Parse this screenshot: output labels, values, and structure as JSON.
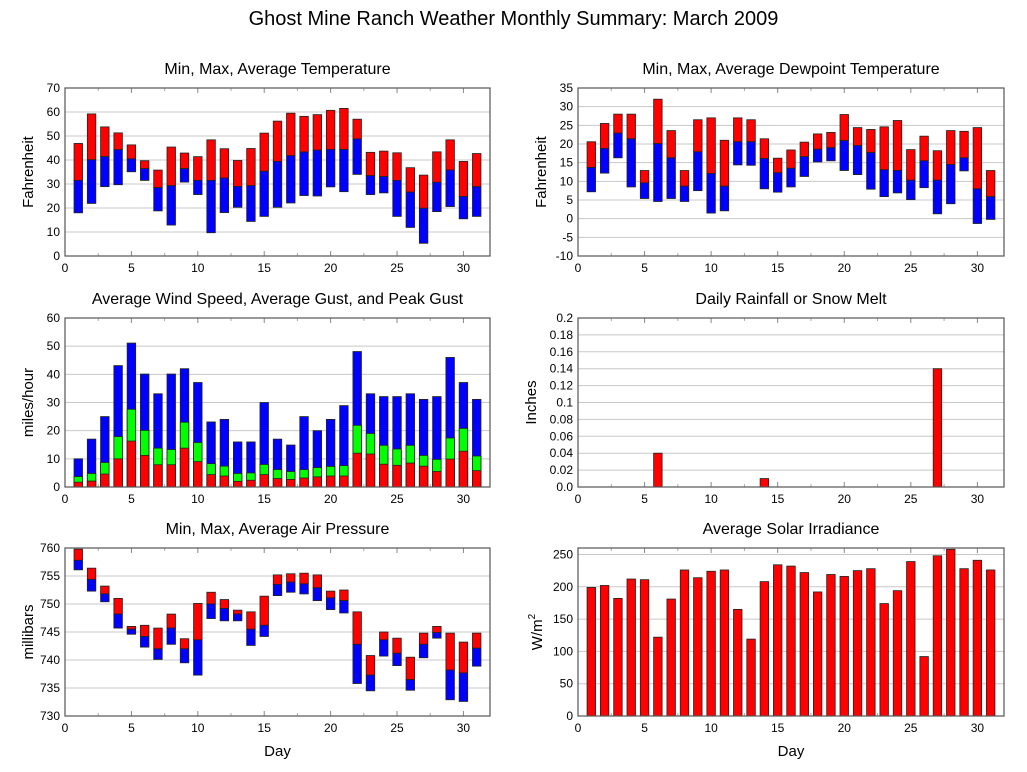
{
  "title": "Ghost Mine Ranch Weather Monthly Summary: March 2009",
  "colors": {
    "red": "#ff0000",
    "blue": "#0000ff",
    "green": "#00ff00"
  },
  "chart_data": [
    {
      "id": "temperature",
      "type": "bar",
      "subtype": "floating-range",
      "title": "Min, Max, Average Temperature",
      "xlabel": "",
      "ylabel": "Fahrenheit",
      "xlim": [
        0,
        32
      ],
      "ylim": [
        0,
        70
      ],
      "xticks": [
        0,
        5,
        10,
        15,
        20,
        25,
        30
      ],
      "yticks": [
        0,
        10,
        20,
        30,
        40,
        50,
        60,
        70
      ],
      "grid": true,
      "x": [
        1,
        2,
        3,
        4,
        5,
        6,
        7,
        8,
        9,
        10,
        11,
        12,
        13,
        14,
        15,
        16,
        17,
        18,
        19,
        20,
        21,
        22,
        23,
        24,
        25,
        26,
        27,
        28,
        29,
        30,
        31
      ],
      "series": [
        {
          "name": "Max",
          "color": "red",
          "values": [
            46.9,
            59.2,
            53.8,
            51.3,
            46.3,
            39.7,
            35.8,
            45.4,
            42.9,
            41.4,
            48.4,
            44.7,
            39.8,
            44.8,
            51.2,
            56.2,
            59.5,
            58.2,
            58.9,
            60.7,
            61.5,
            57.0,
            43.2,
            43.7,
            43.0,
            36.8,
            33.7,
            43.4,
            48.4,
            39.4,
            42.7
          ]
        },
        {
          "name": "Average",
          "color": "boundary",
          "values": [
            31.5,
            40.1,
            41.4,
            44.3,
            40.5,
            36.4,
            28.5,
            29.3,
            36.4,
            31.5,
            31.5,
            32.5,
            29.0,
            29.3,
            35.3,
            39.4,
            41.8,
            43.3,
            44.1,
            44.4,
            44.4,
            48.8,
            33.5,
            33.1,
            31.5,
            26.6,
            19.9,
            30.7,
            35.8,
            24.8,
            28.9
          ]
        },
        {
          "name": "Min",
          "color": "blue",
          "values": [
            18.0,
            21.9,
            28.9,
            29.7,
            35.1,
            31.5,
            18.8,
            12.9,
            30.8,
            25.6,
            9.7,
            18.1,
            20.3,
            14.4,
            16.5,
            20.3,
            22.1,
            25.2,
            25.0,
            28.8,
            26.8,
            34.0,
            25.6,
            26.3,
            16.5,
            11.9,
            5.3,
            18.5,
            20.6,
            15.5,
            16.5
          ]
        }
      ]
    },
    {
      "id": "dewpoint",
      "type": "bar",
      "subtype": "floating-range",
      "title": "Min, Max, Average Dewpoint Temperature",
      "xlabel": "",
      "ylabel": "Fahrenheit",
      "xlim": [
        0,
        32
      ],
      "ylim": [
        -10,
        35
      ],
      "xticks": [
        0,
        5,
        10,
        15,
        20,
        25,
        30
      ],
      "yticks": [
        -10,
        -5,
        0,
        5,
        10,
        15,
        20,
        25,
        30,
        35
      ],
      "grid": true,
      "x": [
        1,
        2,
        3,
        4,
        5,
        6,
        7,
        8,
        9,
        10,
        11,
        12,
        13,
        14,
        15,
        16,
        17,
        18,
        19,
        20,
        21,
        22,
        23,
        24,
        25,
        26,
        27,
        28,
        29,
        30,
        31
      ],
      "series": [
        {
          "name": "Max",
          "color": "red",
          "values": [
            20.6,
            25.5,
            28.0,
            28.0,
            12.9,
            32.0,
            23.6,
            12.9,
            26.5,
            27.0,
            21.0,
            27.0,
            26.5,
            21.4,
            16.2,
            18.4,
            20.5,
            22.7,
            23.1,
            27.9,
            24.4,
            23.9,
            24.6,
            26.3,
            18.5,
            22.1,
            18.2,
            23.6,
            23.4,
            24.4,
            12.9
          ]
        },
        {
          "name": "Average",
          "color": "boundary",
          "values": [
            13.7,
            18.8,
            22.9,
            21.4,
            9.6,
            20.1,
            16.3,
            8.7,
            17.9,
            12.1,
            8.7,
            20.6,
            20.6,
            16.1,
            12.3,
            13.5,
            16.6,
            18.6,
            19.0,
            20.9,
            19.6,
            17.7,
            13.1,
            12.9,
            10.3,
            15.5,
            10.3,
            14.5,
            16.3,
            8.0,
            5.9
          ]
        },
        {
          "name": "Min",
          "color": "blue",
          "values": [
            7.2,
            12.2,
            16.3,
            8.5,
            5.4,
            4.6,
            5.4,
            4.6,
            7.5,
            1.5,
            2.1,
            14.4,
            14.3,
            8.0,
            7.1,
            8.5,
            11.3,
            15.2,
            15.5,
            12.9,
            11.8,
            7.9,
            5.9,
            6.9,
            5.1,
            8.3,
            1.3,
            4.0,
            12.8,
            -1.3,
            -0.2
          ]
        }
      ]
    },
    {
      "id": "wind",
      "type": "bar",
      "subtype": "overlaid",
      "title": "Average Wind Speed, Average Gust, and Peak Gust",
      "xlabel": "",
      "ylabel": "miles/hour",
      "xlim": [
        0,
        32
      ],
      "ylim": [
        0,
        60
      ],
      "xticks": [
        0,
        5,
        10,
        15,
        20,
        25,
        30
      ],
      "yticks": [
        0,
        10,
        20,
        30,
        40,
        50,
        60
      ],
      "grid": true,
      "x": [
        1,
        2,
        3,
        4,
        5,
        6,
        7,
        8,
        9,
        10,
        11,
        12,
        13,
        14,
        15,
        16,
        17,
        18,
        19,
        20,
        21,
        22,
        23,
        24,
        25,
        26,
        27,
        28,
        29,
        30,
        31
      ],
      "series": [
        {
          "name": "Peak Gust",
          "color": "blue",
          "values": [
            10.0,
            17.0,
            25.0,
            43.1,
            51.1,
            40.1,
            33.1,
            40.1,
            42.0,
            37.1,
            23.1,
            24.0,
            16.0,
            16.0,
            30.0,
            17.0,
            14.9,
            25.0,
            20.0,
            24.0,
            28.9,
            48.1,
            33.1,
            32.1,
            32.1,
            33.1,
            31.1,
            32.1,
            46.0,
            37.1,
            31.1
          ]
        },
        {
          "name": "Average Gust",
          "color": "green",
          "values": [
            3.7,
            4.8,
            8.7,
            17.9,
            27.6,
            20.1,
            13.8,
            13.3,
            23.0,
            15.8,
            8.3,
            7.4,
            4.8,
            5.0,
            8.0,
            6.2,
            5.5,
            6.2,
            6.9,
            7.3,
            7.6,
            21.9,
            19.0,
            14.8,
            13.5,
            14.8,
            11.2,
            9.8,
            17.4,
            20.8,
            11.0
          ]
        },
        {
          "name": "Average Wind Speed",
          "color": "red",
          "values": [
            1.7,
            2.1,
            4.6,
            10.0,
            16.3,
            11.2,
            7.9,
            7.9,
            13.8,
            9.0,
            4.4,
            3.9,
            2.0,
            2.4,
            4.4,
            3.0,
            2.7,
            3.2,
            3.6,
            3.9,
            3.9,
            12.0,
            11.7,
            8.1,
            7.7,
            8.5,
            7.4,
            5.5,
            9.9,
            12.7,
            5.8
          ]
        }
      ]
    },
    {
      "id": "rain",
      "type": "bar",
      "title": "Daily Rainfall or Snow Melt",
      "xlabel": "",
      "ylabel": "Inches",
      "xlim": [
        0,
        32
      ],
      "ylim": [
        0,
        0.2
      ],
      "xticks": [
        0,
        5,
        10,
        15,
        20,
        25,
        30
      ],
      "yticks": [
        "0.0",
        "0.02",
        "0.04",
        "0.06",
        "0.08",
        "0.1",
        "0.12",
        "0.14",
        "0.16",
        "0.18",
        "0.2"
      ],
      "grid": true,
      "x": [
        6,
        14,
        27
      ],
      "series": [
        {
          "name": "Rainfall",
          "color": "red",
          "values": [
            0.04,
            0.01,
            0.14
          ]
        }
      ]
    },
    {
      "id": "pressure",
      "type": "bar",
      "subtype": "floating-range",
      "title": "Min, Max, Average Air Pressure",
      "xlabel": "Day",
      "ylabel": "millibars",
      "xlim": [
        0,
        32
      ],
      "ylim": [
        730,
        760
      ],
      "xticks": [
        0,
        5,
        10,
        15,
        20,
        25,
        30
      ],
      "yticks": [
        730,
        735,
        740,
        745,
        750,
        755,
        760
      ],
      "grid": true,
      "x": [
        1,
        2,
        3,
        4,
        5,
        6,
        7,
        8,
        9,
        10,
        11,
        12,
        13,
        14,
        15,
        16,
        17,
        18,
        19,
        20,
        21,
        22,
        23,
        24,
        25,
        26,
        27,
        28,
        29,
        30,
        31
      ],
      "series": [
        {
          "name": "Max",
          "color": "red",
          "values": [
            759.8,
            756.4,
            753.2,
            751.0,
            746.0,
            746.2,
            745.7,
            748.2,
            743.8,
            750.1,
            752.1,
            750.8,
            748.9,
            748.6,
            751.4,
            755.2,
            755.4,
            755.5,
            755.2,
            752.3,
            752.5,
            748.6,
            740.8,
            745.0,
            743.9,
            740.5,
            744.8,
            746.0,
            744.8,
            743.2,
            744.8
          ]
        },
        {
          "name": "Average",
          "color": "boundary",
          "values": [
            757.8,
            754.4,
            751.8,
            748.2,
            745.5,
            744.2,
            742.0,
            745.7,
            742.0,
            743.6,
            750.0,
            749.2,
            748.2,
            745.5,
            746.2,
            753.5,
            753.9,
            753.6,
            752.9,
            751.1,
            750.6,
            742.8,
            737.3,
            743.6,
            741.2,
            736.5,
            742.8,
            744.9,
            738.2,
            737.7,
            742.1
          ]
        },
        {
          "name": "Min",
          "color": "blue",
          "values": [
            756.1,
            752.3,
            750.4,
            745.7,
            744.6,
            742.3,
            740.1,
            742.8,
            739.5,
            737.3,
            747.4,
            747.0,
            747.0,
            742.6,
            744.2,
            751.5,
            752.1,
            751.8,
            750.6,
            749.0,
            748.4,
            735.8,
            734.5,
            740.7,
            739.0,
            734.6,
            740.4,
            743.9,
            732.9,
            732.6,
            738.9
          ]
        }
      ]
    },
    {
      "id": "solar",
      "type": "bar",
      "title": "Average Solar Irradiance",
      "xlabel": "Day",
      "ylabel": "W/m",
      "ylabel_sup": "2",
      "xlim": [
        0,
        32
      ],
      "ylim": [
        0,
        260
      ],
      "xticks": [
        0,
        5,
        10,
        15,
        20,
        25,
        30
      ],
      "yticks": [
        0,
        50,
        100,
        150,
        200,
        250
      ],
      "grid": true,
      "x": [
        1,
        2,
        3,
        4,
        5,
        6,
        7,
        8,
        9,
        10,
        11,
        12,
        13,
        14,
        15,
        16,
        17,
        18,
        19,
        20,
        21,
        22,
        23,
        24,
        25,
        26,
        27,
        28,
        29,
        30,
        31
      ],
      "series": [
        {
          "name": "Solar Irradiance",
          "color": "red",
          "values": [
            199,
            202,
            182,
            212,
            211,
            122,
            181,
            226,
            214,
            224,
            226,
            165,
            119,
            208,
            234,
            232,
            222,
            192,
            219,
            216,
            225,
            228,
            174,
            194,
            239,
            92,
            248,
            258,
            228,
            241,
            226
          ]
        }
      ]
    }
  ]
}
